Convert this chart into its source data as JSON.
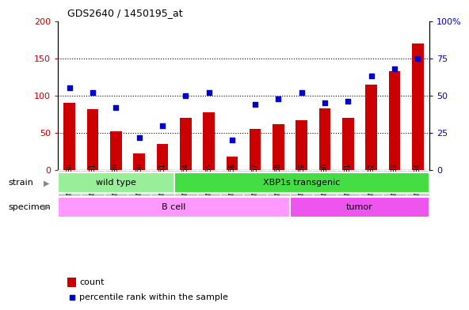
{
  "title": "GDS2640 / 1450195_at",
  "samples": [
    "GSM160730",
    "GSM160731",
    "GSM160739",
    "GSM160860",
    "GSM160861",
    "GSM160864",
    "GSM160865",
    "GSM160866",
    "GSM160867",
    "GSM160868",
    "GSM160869",
    "GSM160880",
    "GSM160881",
    "GSM160882",
    "GSM160883",
    "GSM160884"
  ],
  "counts": [
    90,
    82,
    52,
    22,
    35,
    70,
    78,
    18,
    55,
    62,
    67,
    83,
    70,
    115,
    133,
    170
  ],
  "percentiles": [
    55,
    52,
    42,
    22,
    30,
    50,
    52,
    20,
    44,
    48,
    52,
    45,
    46,
    63,
    68,
    75
  ],
  "ylim_left": [
    0,
    200
  ],
  "ylim_right": [
    0,
    100
  ],
  "yticks_left": [
    0,
    50,
    100,
    150,
    200
  ],
  "yticks_right": [
    0,
    25,
    50,
    75,
    100
  ],
  "yticklabels_right": [
    "0",
    "25",
    "50",
    "75",
    "100%"
  ],
  "bar_color": "#CC0000",
  "scatter_color": "#0000CC",
  "strain_groups": [
    {
      "label": "wild type",
      "start": 0,
      "end": 5,
      "color": "#99EE99"
    },
    {
      "label": "XBP1s transgenic",
      "start": 5,
      "end": 16,
      "color": "#44DD44"
    }
  ],
  "specimen_groups": [
    {
      "label": "B cell",
      "start": 0,
      "end": 10,
      "color": "#FF99FF"
    },
    {
      "label": "tumor",
      "start": 10,
      "end": 16,
      "color": "#EE55EE"
    }
  ],
  "legend_count_label": "count",
  "legend_pct_label": "percentile rank within the sample",
  "strain_label": "strain",
  "specimen_label": "specimen",
  "tick_bg_color": "#CCCCCC",
  "fig_bg": "#FFFFFF"
}
